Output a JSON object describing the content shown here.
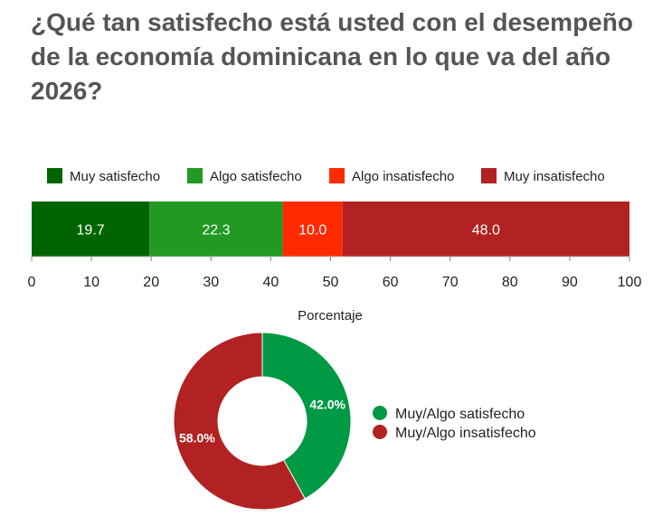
{
  "title": "¿Qué tan satisfecho está usted con el desempeño de la economía dominicana en lo que va del año 2026?",
  "chart_data": [
    {
      "type": "bar",
      "orientation": "horizontal",
      "stacked": true,
      "xlabel": "Porcentaje",
      "xlim": [
        0,
        100
      ],
      "xticks": [
        "0",
        "10",
        "20",
        "30",
        "40",
        "50",
        "60",
        "70",
        "80",
        "90",
        "100"
      ],
      "legend_position": "top",
      "series": [
        {
          "name": "Muy satisfecho",
          "value": 19.7,
          "label": "19.7",
          "color": "#006400"
        },
        {
          "name": "Algo satisfecho",
          "value": 22.3,
          "label": "22.3",
          "color": "#229922"
        },
        {
          "name": "Algo insatisfecho",
          "value": 10.0,
          "label": "10.0",
          "color": "#ff2a00"
        },
        {
          "name": "Muy insatisfecho",
          "value": 48.0,
          "label": "48.0",
          "color": "#b22222"
        }
      ]
    },
    {
      "type": "pie",
      "donut": true,
      "legend_position": "right",
      "slices": [
        {
          "name": "Muy/Algo satisfecho",
          "value": 42.0,
          "label": "42.0%",
          "color": "#009944"
        },
        {
          "name": "Muy/Algo insatisfecho",
          "value": 58.0,
          "label": "58.0%",
          "color": "#b22222"
        }
      ]
    }
  ]
}
